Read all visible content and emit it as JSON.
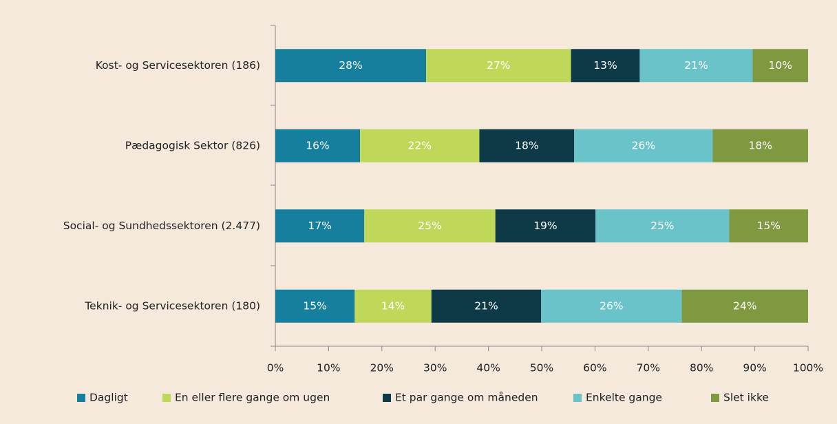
{
  "chart_data": {
    "type": "stacked_bar_horizontal",
    "categories": [
      "Kost- og Servicesektoren (186)",
      "Pædagogisk Sektor (826)",
      "Social- og Sundhedssektoren (2.477)",
      "Teknik- og Servicesektoren (180)"
    ],
    "series": [
      {
        "name": "Dagligt",
        "color": "#167f9d",
        "values": [
          28.3,
          15.9,
          16.7,
          14.9
        ],
        "value_labels": [
          "28%",
          "16%",
          "17%",
          "15%"
        ]
      },
      {
        "name": "En eller flere gange om ugen",
        "color": "#bfd85a",
        "values": [
          27.2,
          22.4,
          24.6,
          14.4
        ],
        "value_labels": [
          "27%",
          "22%",
          "25%",
          "14%"
        ]
      },
      {
        "name": "Et par gange om måneden",
        "color": "#0d3a46",
        "values": [
          12.9,
          17.8,
          18.8,
          20.6
        ],
        "value_labels": [
          "13%",
          "18%",
          "19%",
          "21%"
        ]
      },
      {
        "name": "Enkelte gange",
        "color": "#6ac3c8",
        "values": [
          21.2,
          26.0,
          25.1,
          26.4
        ],
        "value_labels": [
          "21%",
          "26%",
          "25%",
          "26%"
        ]
      },
      {
        "name": "Slet ikke",
        "color": "#7e9940",
        "values": [
          10.4,
          17.9,
          14.8,
          23.7
        ],
        "value_labels": [
          "10%",
          "18%",
          "15%",
          "24%"
        ]
      }
    ],
    "xlim": [
      0,
      100
    ],
    "xticks": [
      {
        "value": 0,
        "label": "0%"
      },
      {
        "value": 10,
        "label": "10%"
      },
      {
        "value": 20,
        "label": "20%"
      },
      {
        "value": 30,
        "label": "30%"
      },
      {
        "value": 40,
        "label": "40%"
      },
      {
        "value": 50,
        "label": "50%"
      },
      {
        "value": 60,
        "label": "60%"
      },
      {
        "value": 70,
        "label": "70%"
      },
      {
        "value": 80,
        "label": "80%"
      },
      {
        "value": 90,
        "label": "90%"
      },
      {
        "value": 100,
        "label": "100%"
      }
    ],
    "legend": "bottom"
  }
}
